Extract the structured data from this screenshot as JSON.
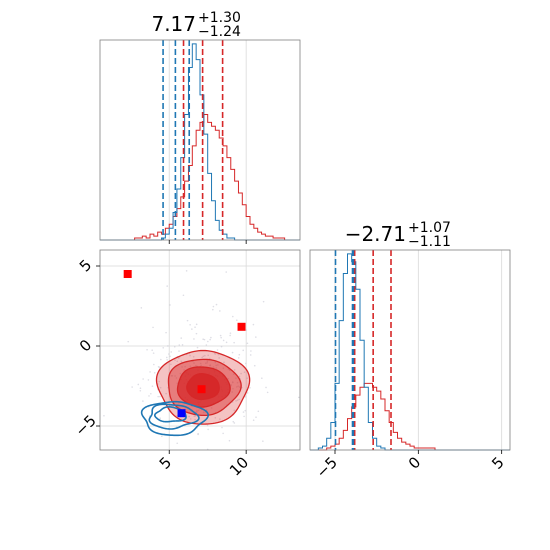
{
  "chart_data": {
    "type": "corner",
    "colors": {
      "red": "#d62728",
      "blue": "#1f77b4",
      "grid": "#d9d9d9",
      "axes": "#808080"
    },
    "param_x": {
      "title": {
        "base": "7.17",
        "plus": "+1.30",
        "minus": "−1.24"
      },
      "xlim": [
        0.5,
        13.5
      ],
      "ticks": [
        5,
        10
      ],
      "tick_labels": [
        "5",
        "10"
      ],
      "red_quantiles": [
        5.93,
        7.17,
        8.47
      ],
      "blue_quantiles": [
        4.6,
        5.4,
        6.3
      ],
      "red_hist": {
        "bin_start": 0.5,
        "bin_width": 0.25,
        "counts": [
          0,
          0,
          0,
          0,
          0,
          0,
          0,
          0,
          0,
          1,
          1,
          2,
          1,
          3,
          2,
          4,
          3,
          6,
          8,
          12,
          16,
          22,
          30,
          38,
          48,
          56,
          60,
          64,
          60,
          58,
          56,
          52,
          48,
          42,
          36,
          30,
          24,
          18,
          12,
          8,
          6,
          4,
          3,
          2,
          2,
          1,
          1,
          1,
          0,
          0,
          0,
          0
        ]
      },
      "blue_hist": {
        "bin_start": 0.5,
        "bin_width": 0.25,
        "counts": [
          0,
          0,
          0,
          0,
          0,
          0,
          0,
          0,
          0,
          0,
          0,
          0,
          0,
          0,
          0,
          0,
          1,
          3,
          6,
          14,
          26,
          42,
          64,
          88,
          100,
          92,
          74,
          54,
          34,
          20,
          10,
          5,
          3,
          1,
          1,
          0,
          0,
          0,
          0,
          0,
          0,
          0,
          0,
          0,
          0,
          0,
          0,
          0,
          0,
          0,
          0,
          0
        ]
      }
    },
    "param_y": {
      "title": {
        "base": "−2.71",
        "plus": "+1.07",
        "minus": "−1.11"
      },
      "xlim": [
        -6.5,
        5.5
      ],
      "ticks": [
        -5,
        0,
        5
      ],
      "tick_labels": [
        "−5",
        "0",
        "5"
      ],
      "red_quantiles": [
        -3.82,
        -2.71,
        -1.64
      ],
      "blue_quantiles": [
        -4.97,
        -3.95,
        -3.9
      ],
      "red_hist": {
        "bin_start": -6.5,
        "bin_width": 0.25,
        "counts": [
          0,
          0,
          0,
          0,
          1,
          2,
          3,
          6,
          10,
          16,
          22,
          28,
          32,
          34,
          34,
          32,
          30,
          26,
          20,
          14,
          9,
          6,
          4,
          3,
          2,
          1,
          1,
          1,
          1,
          1,
          0,
          0,
          0,
          0,
          0,
          0,
          0,
          0,
          0,
          0,
          0,
          0,
          0,
          0,
          0,
          0,
          0,
          0
        ]
      },
      "blue_hist": {
        "bin_start": -6.5,
        "bin_width": 0.25,
        "counts": [
          0,
          0,
          1,
          2,
          6,
          14,
          34,
          66,
          90,
          100,
          96,
          82,
          56,
          32,
          14,
          6,
          2,
          1,
          0,
          0,
          0,
          0,
          0,
          0,
          0,
          0,
          0,
          0,
          0,
          0,
          0,
          0,
          0,
          0,
          0,
          0,
          0,
          0,
          0,
          0,
          0,
          0,
          0,
          0,
          0,
          0,
          0,
          0
        ]
      }
    },
    "joint": {
      "xlim": [
        0.5,
        13.5
      ],
      "ylim": [
        -6.5,
        6
      ],
      "xticks": [
        5,
        10
      ],
      "xtick_labels": [
        "5",
        "10"
      ],
      "yticks": [
        -5,
        0,
        5
      ],
      "ytick_labels": [
        "−5",
        "0",
        "5"
      ],
      "red_markers": [
        [
          2.3,
          4.5
        ],
        [
          9.7,
          1.2
        ],
        [
          7.1,
          -2.7
        ]
      ],
      "blue_markers": [
        [
          5.8,
          -4.2
        ]
      ]
    }
  }
}
